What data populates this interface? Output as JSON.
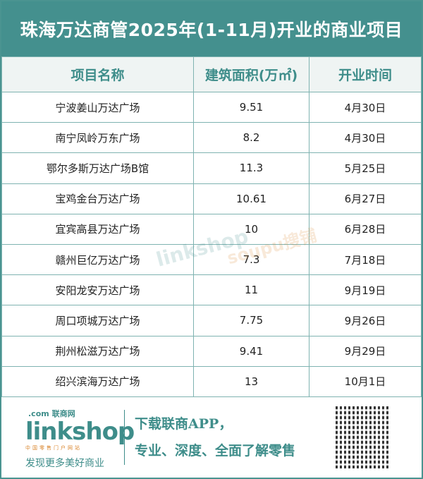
{
  "title": "珠海万达商管2025年(1-11月)开业的商业项目",
  "columns": [
    "项目名称",
    "建筑面积(万㎡)",
    "开业时间"
  ],
  "rows": [
    [
      "宁波姜山万达广场",
      "9.51",
      "4月30日"
    ],
    [
      "南宁凤岭万东广场",
      "8.2",
      "4月30日"
    ],
    [
      "鄂尔多斯万达广场B馆",
      "11.3",
      "5月25日"
    ],
    [
      "宝鸡金台万达广场",
      "10.61",
      "6月27日"
    ],
    [
      "宜宾高县万达广场",
      "10",
      "6月28日"
    ],
    [
      "赣州巨亿万达广场",
      "7.3",
      "7月18日"
    ],
    [
      "安阳龙安万达广场",
      "11",
      "9月19日"
    ],
    [
      "周口项城万达广场",
      "7.75",
      "9月26日"
    ],
    [
      "荆州松滋万达广场",
      "9.41",
      "9月29日"
    ],
    [
      "绍兴滨海万达广场",
      "13",
      "10月1日"
    ]
  ],
  "watermarks": [
    "linkshop",
    "soupu搜铺"
  ],
  "footer": {
    "logo_brand": "linkshop",
    "logo_cn": "联商网",
    "logo_com": ".com",
    "logo_sub": "中国零售门户网站",
    "slogan": "发现更多美好商业",
    "promo_line1": "下载联商APP，",
    "promo_line2": "专业、深度、全面了解零售"
  },
  "colors": {
    "accent": "#44908e",
    "header_bg": "#eff4f3"
  }
}
